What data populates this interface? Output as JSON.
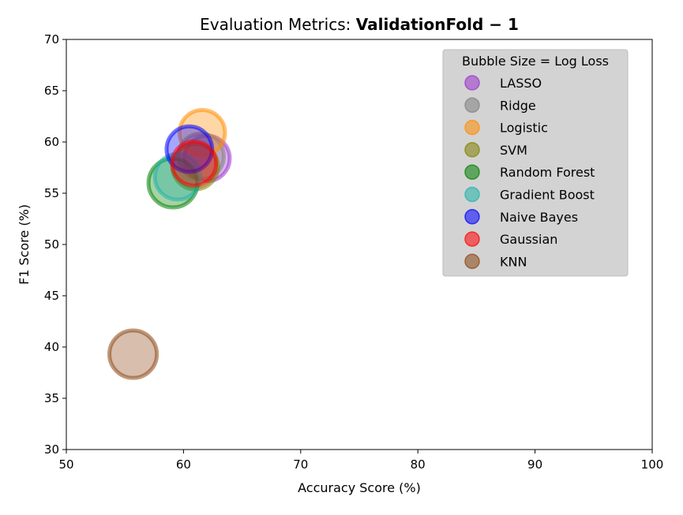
{
  "chart_data": {
    "type": "scatter",
    "title_prefix": "Evaluation Metrics: ",
    "title_bold": "ValidationFold − 1",
    "xlabel": "Accuracy Score (%)",
    "ylabel": "F1 Score (%)",
    "xlim": [
      50,
      100
    ],
    "ylim": [
      30,
      70
    ],
    "xticks": [
      50,
      60,
      70,
      80,
      90,
      100
    ],
    "yticks": [
      30,
      35,
      40,
      45,
      50,
      55,
      60,
      65,
      70
    ],
    "grid": false,
    "legend": {
      "title": "Bubble Size = Log Loss",
      "placement": "top-right"
    },
    "series": [
      {
        "name": "LASSO",
        "color": "#9932cc",
        "x": 62.0,
        "y": 58.4,
        "size": 0.93
      },
      {
        "name": "Ridge",
        "color": "#808080",
        "x": 61.5,
        "y": 58.6,
        "size": 0.93
      },
      {
        "name": "Logistic",
        "color": "#ff8c00",
        "x": 61.6,
        "y": 60.9,
        "size": 0.93
      },
      {
        "name": "SVM",
        "color": "#808000",
        "x": 61.0,
        "y": 57.6,
        "size": 0.93
      },
      {
        "name": "Random Forest",
        "color": "#008000",
        "x": 59.1,
        "y": 56.0,
        "size": 1.0
      },
      {
        "name": "Gradient Boost",
        "color": "#20b2aa",
        "x": 59.5,
        "y": 56.6,
        "size": 0.93
      },
      {
        "name": "Naive Bayes",
        "color": "#0000ff",
        "x": 60.5,
        "y": 59.3,
        "size": 0.93
      },
      {
        "name": "Gaussian",
        "color": "#ff0000",
        "x": 60.9,
        "y": 57.9,
        "size": 0.9
      },
      {
        "name": "KNN",
        "color": "#8b4513",
        "x": 55.7,
        "y": 39.3,
        "size": 0.97
      }
    ]
  }
}
